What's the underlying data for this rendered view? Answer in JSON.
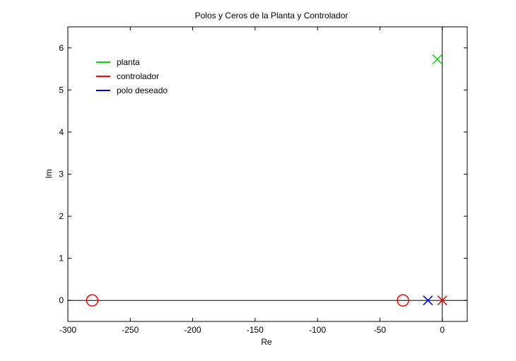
{
  "chart_data": {
    "type": "scatter",
    "title": "Polos y Ceros de la Planta y Controlador",
    "xlabel": "Re",
    "ylabel": "Im",
    "xlim": [
      -300,
      20
    ],
    "ylim": [
      -0.5,
      6.5
    ],
    "xticks": [
      -300,
      -250,
      -200,
      -150,
      -100,
      -50,
      0
    ],
    "yticks": [
      0,
      1,
      2,
      3,
      4,
      5,
      6
    ],
    "xtick_labels": [
      "-300",
      "-250",
      "-200",
      "-150",
      "-100",
      "-50",
      "0"
    ],
    "ytick_labels": [
      "0",
      "1",
      "2",
      "3",
      "4",
      "5",
      "6"
    ],
    "grid": false,
    "legend_position": "top-left",
    "reference_lines": {
      "horizontal_at": 0,
      "vertical_at": 0
    },
    "series": [
      {
        "name": "planta",
        "color": "#00dd00",
        "points": [
          {
            "x": -4,
            "y": 5.73,
            "marker": "x"
          }
        ]
      },
      {
        "name": "controlador",
        "color": "#ff0000",
        "points": [
          {
            "x": 0,
            "y": 0,
            "marker": "x"
          },
          {
            "x": -31.5,
            "y": 0,
            "marker": "o"
          },
          {
            "x": -280.5,
            "y": 0,
            "marker": "o"
          }
        ]
      },
      {
        "name": "polo deseado",
        "color": "#0000ff",
        "points": [
          {
            "x": -11.5,
            "y": 0,
            "marker": "x"
          }
        ]
      }
    ]
  }
}
